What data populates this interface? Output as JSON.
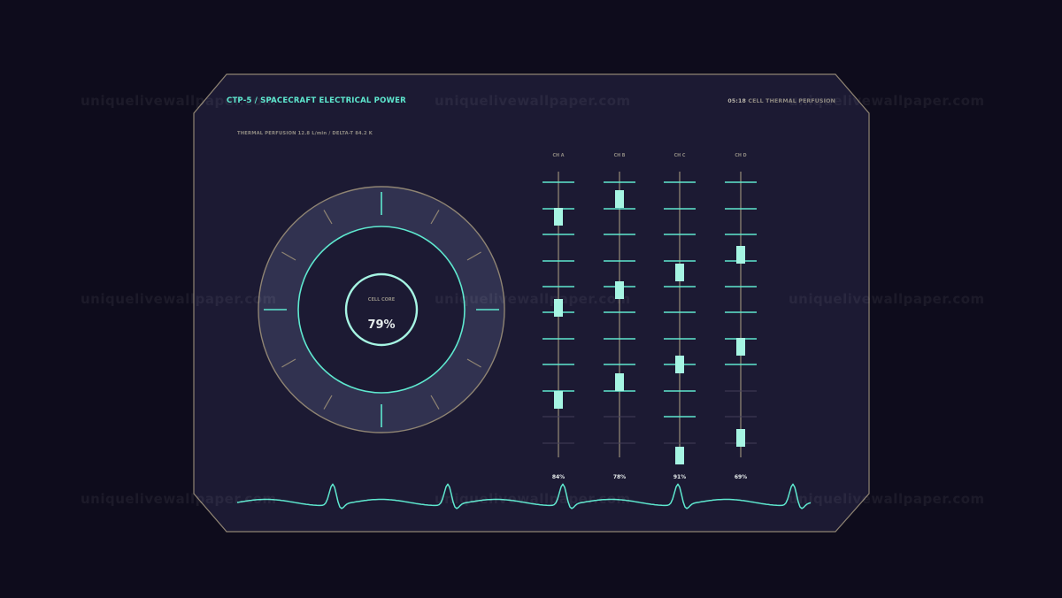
{
  "header": {
    "title": "CTP-5 / SPACECRAFT ELECTRICAL POWER",
    "readout": "THERMAL PERFUSION 12.8 L/min / DELTA-T 84.2 K",
    "clock": "05:18",
    "clock_label": "CELL THERMAL PERFUSION"
  },
  "dial": {
    "label": "CELL CORE",
    "value": "79%"
  },
  "channels": [
    {
      "label": "CH A",
      "value": "84%",
      "level": 0.84
    },
    {
      "label": "CH B",
      "value": "78%",
      "level": 0.78
    },
    {
      "label": "CH C",
      "value": "91%",
      "level": 0.91
    },
    {
      "label": "CH D",
      "value": "69%",
      "level": 0.69
    }
  ],
  "watermark": "uniquelivewallpaper.com",
  "colors": {
    "background": "#0e0c1c",
    "panel": "#1c1a33",
    "frame": "#8f8473",
    "accent": "#5ee8cf",
    "marker": "#a6f5e3",
    "text_dim": "#8d8880"
  }
}
